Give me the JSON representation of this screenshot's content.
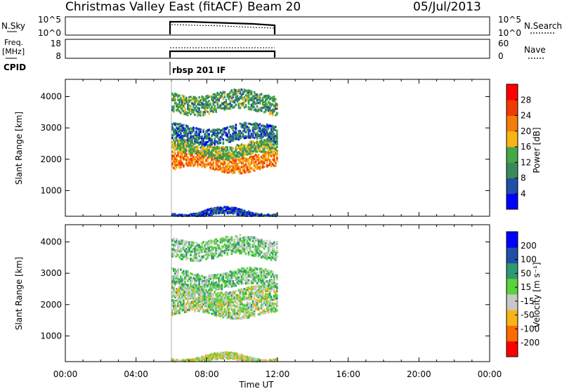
{
  "header": {
    "station": "Christmas Valley East (fitACF)",
    "beam": "Beam 20",
    "date": "05/Jul/2013"
  },
  "panel_nsky": {
    "left_label": "N.Sky",
    "right_label": "N.Search",
    "left_ticks": [
      "10^5",
      "10^0"
    ],
    "right_ticks": [
      "10^5",
      "10^0"
    ]
  },
  "panel_freq": {
    "left_label_line1": "Freq.",
    "left_label_line2": "[MHz]",
    "right_label": "Nave",
    "left_ticks": [
      "18",
      "8"
    ],
    "right_ticks": [
      "60",
      "0"
    ]
  },
  "cpid": {
    "label": "CPID",
    "program": "rbsp 201 IF"
  },
  "time_axis": {
    "label": "Time UT",
    "ticks": [
      "00:00",
      "04:00",
      "08:00",
      "12:00",
      "16:00",
      "20:00",
      "00:00"
    ]
  },
  "colors": {
    "power": [
      "#0000ff",
      "#1f4fa8",
      "#3a8a5a",
      "#44a845",
      "#f7b515",
      "#f57c0a",
      "#f03c00",
      "#ff0000"
    ],
    "velocity": [
      "#ff0000",
      "#ff6a00",
      "#f7b515",
      "#c8c8c8",
      "#5bd23a",
      "#2f9a6e",
      "#1f4fa8",
      "#0000ff"
    ]
  },
  "chart_data": [
    {
      "type": "heatmap",
      "name": "power",
      "ylabel": "Slant Range [km]",
      "yticks": [
        1000,
        2000,
        3000,
        4000
      ],
      "ylim": [
        180,
        4550
      ],
      "xlim": [
        0,
        24
      ],
      "data_window": [
        6.0,
        12.0
      ],
      "colorbar": {
        "label": "Power [dB]",
        "ticks": [
          "4",
          "8",
          "12",
          "16",
          "20",
          "24",
          "28"
        ],
        "range": [
          0,
          32
        ]
      },
      "echo_bands": [
        {
          "t_start": 6.0,
          "t_end": 12.0,
          "range_km": 1900,
          "width_km": 250,
          "value": 22
        },
        {
          "t_start": 6.0,
          "t_end": 12.0,
          "range_km": 2300,
          "width_km": 200,
          "value": 14
        },
        {
          "t_start": 6.0,
          "t_end": 12.0,
          "range_km": 2800,
          "width_km": 250,
          "value": 8
        },
        {
          "t_start": 6.0,
          "t_end": 12.0,
          "range_km": 3800,
          "width_km": 300,
          "value": 12
        },
        {
          "t_start": 6.0,
          "t_end": 12.0,
          "range_km": 250,
          "width_km": 100,
          "value": 6
        }
      ]
    },
    {
      "type": "heatmap",
      "name": "velocity",
      "ylabel": "Slant Range [km]",
      "yticks": [
        1000,
        2000,
        3000,
        4000
      ],
      "ylim": [
        180,
        4550
      ],
      "xlim": [
        0,
        24
      ],
      "data_window": [
        6.0,
        12.0
      ],
      "colorbar": {
        "label": "Velocity [m s⁻¹]",
        "ticks": [
          "-200",
          "-100",
          "-50",
          "-15",
          "15",
          "50",
          "100",
          "200"
        ],
        "range": [
          -250,
          250
        ]
      },
      "echo_bands": [
        {
          "t_start": 6.0,
          "t_end": 12.0,
          "range_km": 1900,
          "width_km": 250,
          "value": 0
        },
        {
          "t_start": 6.0,
          "t_end": 12.0,
          "range_km": 2300,
          "width_km": 200,
          "value": 0
        },
        {
          "t_start": 6.0,
          "t_end": 12.0,
          "range_km": 2800,
          "width_km": 250,
          "value": 30
        },
        {
          "t_start": 6.0,
          "t_end": 12.0,
          "range_km": 3800,
          "width_km": 300,
          "value": 30
        },
        {
          "t_start": 6.0,
          "t_end": 12.0,
          "range_km": 250,
          "width_km": 100,
          "value": -30
        }
      ]
    }
  ]
}
